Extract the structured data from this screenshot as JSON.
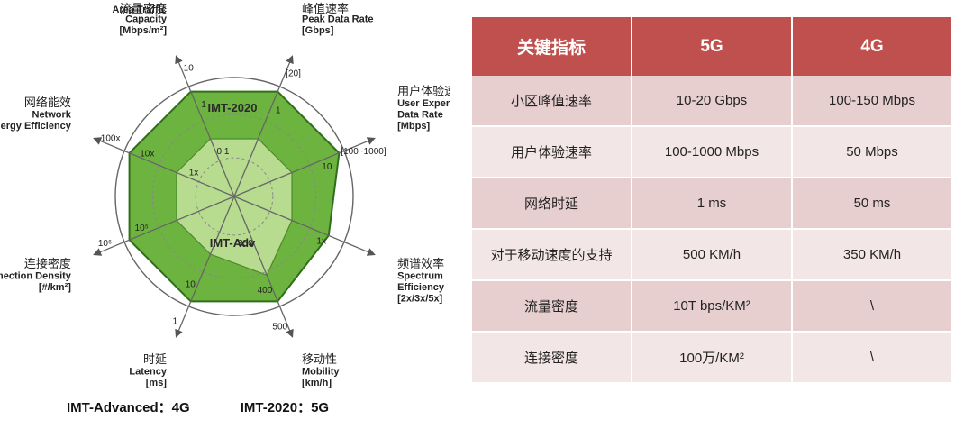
{
  "radar": {
    "inner_title": "IMT-2020",
    "inner_label": "IMT-Adv",
    "axes": [
      {
        "cn": "峰值速率",
        "en_lines": [
          "Peak Data Rate"
        ],
        "unit": "[Gbps]",
        "outer": "[20]",
        "mid": "1",
        "inner": ""
      },
      {
        "cn": "用户体验速率",
        "en_lines": [
          "User Experienced",
          "Data Rate"
        ],
        "unit": "[Mbps]",
        "outer": "[100~1000]",
        "mid": "10",
        "inner": ""
      },
      {
        "cn": "频谱效率",
        "en_lines": [
          "Spectrum",
          "Efficiency"
        ],
        "unit": "[2x/3x/5x]",
        "outer": "",
        "mid": "1x",
        "inner": ""
      },
      {
        "cn": "移动性",
        "en_lines": [
          "Mobility"
        ],
        "unit": "[km/h]",
        "outer": "500",
        "mid": "400",
        "inner": "350"
      },
      {
        "cn": "时延",
        "en_lines": [
          "Latency"
        ],
        "unit": "[ms]",
        "outer": "1",
        "mid": "10",
        "inner": ""
      },
      {
        "cn": "连接密度",
        "en_lines": [
          "Connection Density"
        ],
        "unit": "[#/km²]",
        "outer": "10⁶",
        "mid": "10⁵",
        "inner": ""
      },
      {
        "cn": "网络能效",
        "en_lines": [
          "Network",
          "Energy Efficiency"
        ],
        "unit": "",
        "outer": "100x",
        "mid": "10x",
        "inner": "1x"
      },
      {
        "cn": "流量密度",
        "en_lines": [
          "Area Traffic",
          "Capacity"
        ],
        "unit": "[Mbps/m²]",
        "outer": "10",
        "mid": "1",
        "inner": "0.1"
      }
    ],
    "imt2020_levels": [
      1.0,
      1.0,
      0.9,
      1.0,
      1.0,
      1.0,
      1.0,
      1.0
    ],
    "imtadv_levels": [
      0.55,
      0.55,
      0.55,
      0.75,
      0.55,
      0.55,
      0.55,
      0.55
    ],
    "colors": {
      "outer_fill": "#6db33f",
      "inner_fill": "#b7db8f",
      "stroke": "#555555",
      "octagon": "#2f6e1a"
    }
  },
  "legend": {
    "adv": "IMT-Advanced：4G",
    "imt2020": "IMT-2020：5G"
  },
  "table": {
    "headers": [
      "关键指标",
      "5G",
      "4G"
    ],
    "rows": [
      [
        "小区峰值速率",
        "10-20 Gbps",
        "100-150 Mbps"
      ],
      [
        "用户体验速率",
        "100-1000 Mbps",
        "50 Mbps"
      ],
      [
        "网络时延",
        "1 ms",
        "50 ms"
      ],
      [
        "对于移动速度的支持",
        "500 KM/h",
        "350 KM/h"
      ],
      [
        "流量密度",
        "10T bps/KM²",
        "\\"
      ],
      [
        "连接密度",
        "100万/KM²",
        "\\"
      ]
    ],
    "colors": {
      "header_bg": "#c0504d",
      "row_odd": "#e8cfcf",
      "row_even": "#f3e6e6"
    }
  }
}
